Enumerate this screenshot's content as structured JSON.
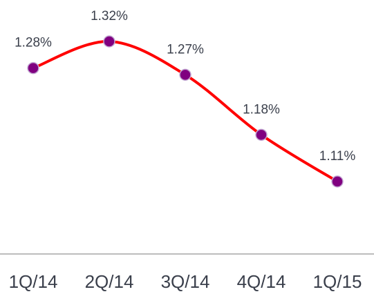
{
  "chart_data": {
    "type": "line",
    "categories": [
      "1Q/14",
      "2Q/14",
      "3Q/14",
      "4Q/14",
      "1Q/15"
    ],
    "series": [
      {
        "color": "#ff0000",
        "marker_color": "#800080",
        "values": [
          1.28,
          1.32,
          1.27,
          1.18,
          1.11
        ],
        "value_labels": [
          "1.28%",
          "1.32%",
          "1.27%",
          "1.18%",
          "1.11%"
        ]
      }
    ]
  }
}
